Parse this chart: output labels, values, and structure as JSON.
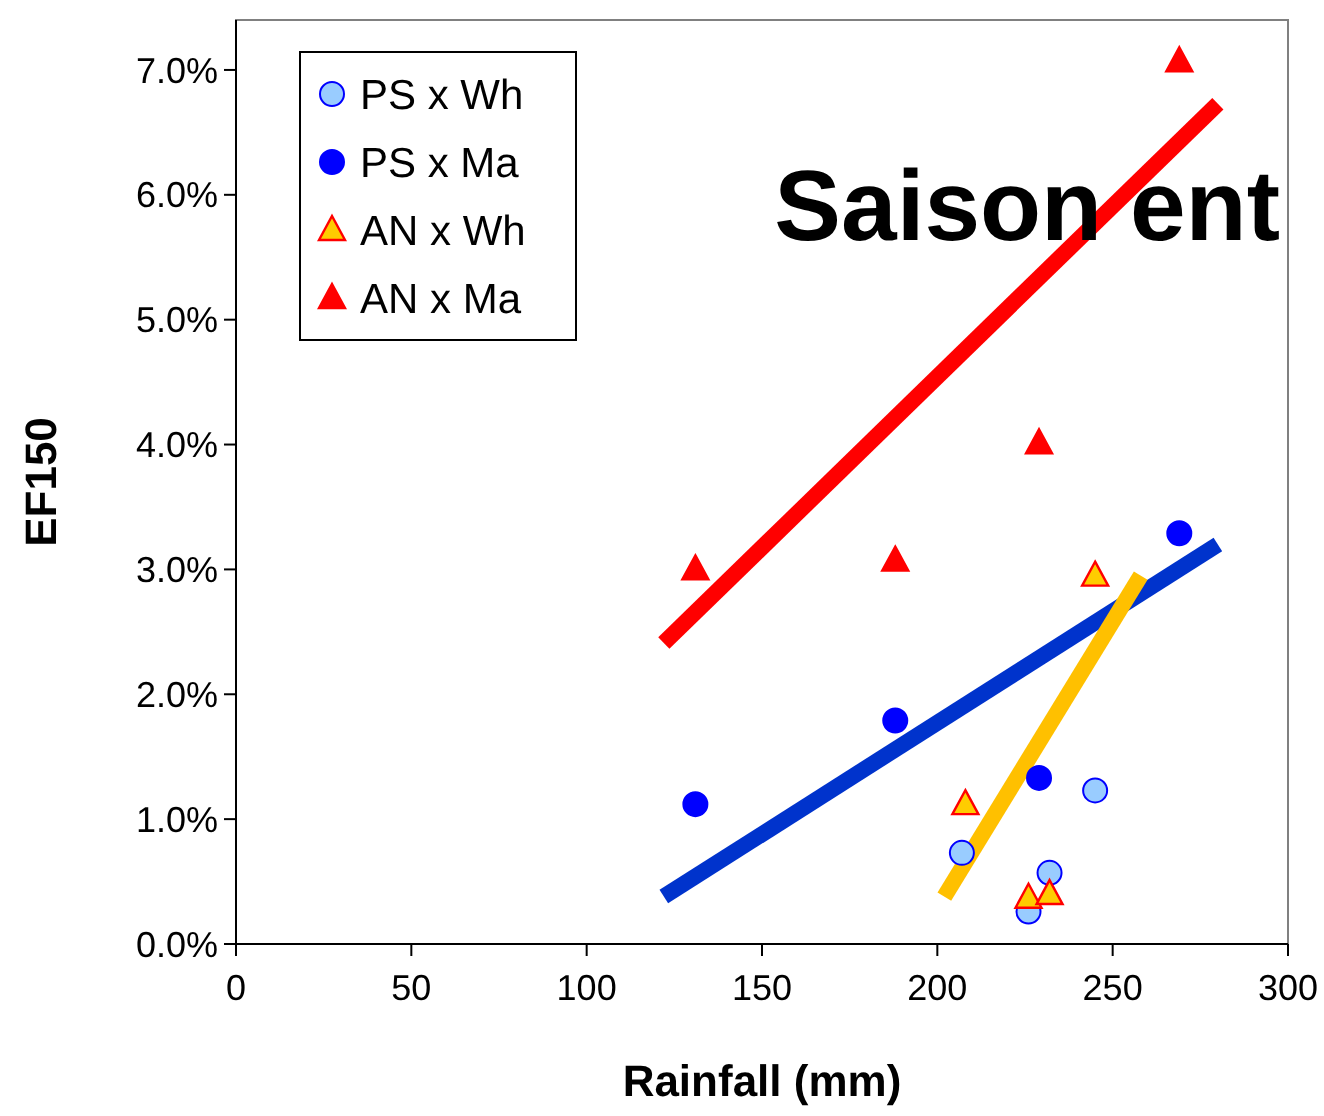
{
  "chart_data": {
    "type": "scatter",
    "xlabel": "Rainfall (mm)",
    "ylabel": "EF150",
    "annotations": [
      "Saison ent"
    ],
    "xlim": [
      0,
      300
    ],
    "xticks": [
      0,
      50,
      100,
      150,
      200,
      250,
      300
    ],
    "ylim": [
      0,
      7.4
    ],
    "yticks": [
      {
        "value": 0,
        "label": "0.0%"
      },
      {
        "value": 1,
        "label": "1.0%"
      },
      {
        "value": 2,
        "label": "2.0%"
      },
      {
        "value": 3,
        "label": "3.0%"
      },
      {
        "value": 4,
        "label": "4.0%"
      },
      {
        "value": 5,
        "label": "5.0%"
      },
      {
        "value": 6,
        "label": "6.0%"
      },
      {
        "value": 7,
        "label": "7.0%"
      }
    ],
    "grid": false,
    "legend": "top left",
    "series": [
      {
        "name": "PS x Wh",
        "color": "#99ccff",
        "marker": "circle",
        "x": [
          207,
          226,
          232,
          245
        ],
        "values": [
          0.73,
          0.26,
          0.57,
          1.23
        ]
      },
      {
        "name": "PS x Ma",
        "color": "#0000ff",
        "marker": "circle",
        "x": [
          131,
          188,
          229,
          269
        ],
        "values": [
          1.12,
          1.79,
          1.33,
          3.29
        ]
      },
      {
        "name": "AN x Wh",
        "color": "#ffcc00",
        "marker": "triangle",
        "x": [
          208,
          226,
          232,
          245
        ],
        "values": [
          1.12,
          0.37,
          0.4,
          2.95
        ]
      },
      {
        "name": "AN x Ma",
        "color": "#ff0000",
        "marker": "triangle",
        "x": [
          131,
          188,
          229,
          269
        ],
        "values": [
          3.0,
          3.07,
          4.01,
          7.07
        ]
      },
      {
        "type": "line",
        "color": "#ff0000",
        "marker": "none",
        "line_style": "solid",
        "x": [
          122,
          280
        ],
        "values": [
          2.41,
          6.73
        ]
      },
      {
        "type": "line",
        "color": "#0033cc",
        "marker": "none",
        "line_style": "solid",
        "x": [
          122,
          280
        ],
        "values": [
          0.38,
          3.2
        ]
      },
      {
        "type": "line",
        "color": "#ffc000",
        "marker": "none",
        "line_style": "solid",
        "x": [
          202,
          258
        ],
        "values": [
          0.38,
          2.95
        ]
      }
    ]
  }
}
